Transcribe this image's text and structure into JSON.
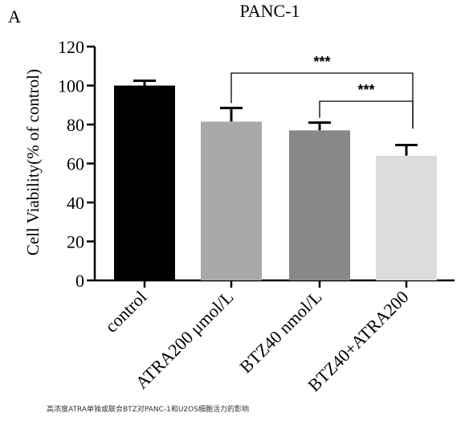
{
  "panel_label": "A",
  "caption": "高浓度ATRA单独或联合BTZ对PANC-1和U2OS细胞活力的影响",
  "chart_data": {
    "type": "bar",
    "title": "PANC-1",
    "xlabel": "",
    "ylabel": "Cell Viability(% of control)",
    "ylim": [
      0,
      120
    ],
    "yticks": [
      0,
      20,
      40,
      60,
      80,
      100,
      120
    ],
    "categories": [
      "control",
      "ATRA200 μmol/L",
      "BTZ40 nmol/L",
      "BTZ40+ATRA200"
    ],
    "values": [
      100,
      81.5,
      77,
      64
    ],
    "errors": [
      2.5,
      7,
      4,
      5.5
    ],
    "bar_colors": [
      "#000000",
      "#a9a9a9",
      "#888888",
      "#dcdcdc"
    ],
    "grid": false,
    "significance": [
      {
        "from": 1,
        "to": 3,
        "label": "***"
      },
      {
        "from": 2,
        "to": 3,
        "label": "***"
      }
    ]
  }
}
